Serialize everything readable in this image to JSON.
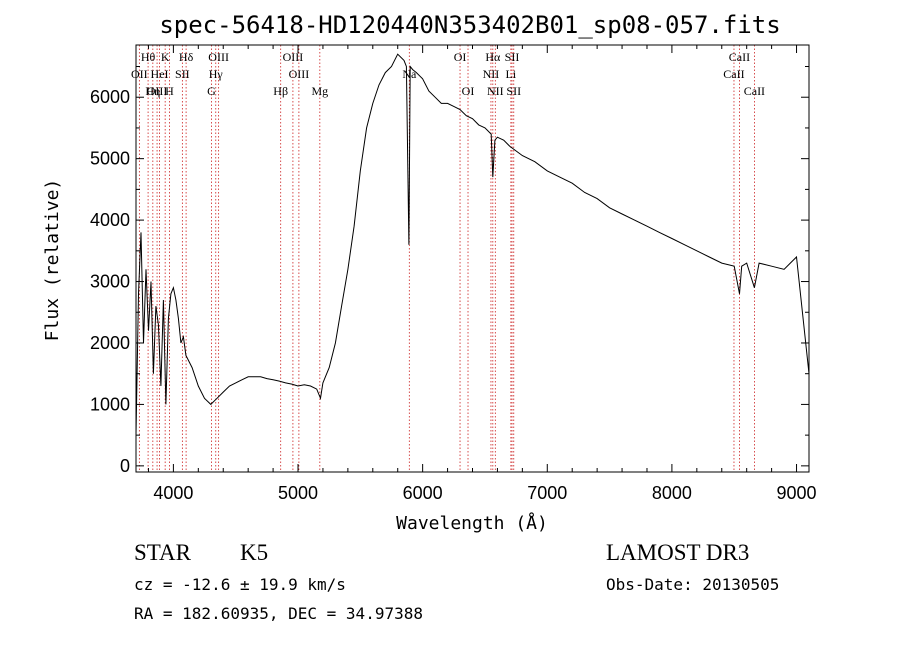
{
  "chart_data": {
    "type": "line",
    "title": "spec-56418-HD120440N353402B01_sp08-057.fits",
    "xlabel": "Wavelength (Å)",
    "ylabel": "Flux (relative)",
    "xlim": [
      3700,
      9100
    ],
    "ylim": [
      -100,
      6850
    ],
    "xticks": [
      4000,
      5000,
      6000,
      7000,
      8000,
      9000
    ],
    "yticks": [
      0,
      1000,
      2000,
      3000,
      4000,
      5000,
      6000
    ],
    "grid": false,
    "series": [
      {
        "name": "spectrum",
        "color": "#000000",
        "x": [
          3700,
          3720,
          3740,
          3760,
          3780,
          3800,
          3820,
          3840,
          3860,
          3880,
          3900,
          3920,
          3940,
          3960,
          3980,
          4000,
          4020,
          4040,
          4060,
          4080,
          4100,
          4150,
          4200,
          4250,
          4300,
          4350,
          4400,
          4450,
          4500,
          4550,
          4600,
          4650,
          4700,
          4750,
          4800,
          4850,
          4900,
          4950,
          5000,
          5050,
          5100,
          5150,
          5180,
          5200,
          5250,
          5300,
          5350,
          5400,
          5450,
          5500,
          5550,
          5600,
          5650,
          5700,
          5750,
          5800,
          5850,
          5870,
          5890,
          5900,
          5920,
          5950,
          6000,
          6050,
          6100,
          6150,
          6200,
          6250,
          6300,
          6350,
          6400,
          6450,
          6500,
          6550,
          6563,
          6580,
          6600,
          6650,
          6700,
          6800,
          6900,
          7000,
          7100,
          7200,
          7300,
          7400,
          7500,
          7600,
          7700,
          7800,
          7900,
          8000,
          8100,
          8200,
          8300,
          8400,
          8500,
          8542,
          8560,
          8600,
          8662,
          8700,
          8800,
          8900,
          8950,
          9000,
          9100
        ],
        "y": [
          500,
          2800,
          3800,
          2000,
          3200,
          2200,
          3000,
          1500,
          2600,
          2300,
          1300,
          2700,
          1000,
          2400,
          2800,
          2900,
          2700,
          2400,
          2000,
          2100,
          1800,
          1600,
          1300,
          1100,
          1000,
          1100,
          1200,
          1300,
          1350,
          1400,
          1450,
          1450,
          1450,
          1420,
          1400,
          1380,
          1350,
          1330,
          1300,
          1320,
          1300,
          1250,
          1100,
          1350,
          1600,
          2000,
          2600,
          3200,
          3900,
          4800,
          5500,
          5900,
          6200,
          6400,
          6500,
          6700,
          6600,
          6500,
          3600,
          6500,
          6450,
          6400,
          6300,
          6100,
          6000,
          5900,
          5900,
          5850,
          5800,
          5700,
          5650,
          5550,
          5500,
          5400,
          4700,
          5300,
          5350,
          5300,
          5200,
          5050,
          4950,
          4800,
          4700,
          4600,
          4450,
          4350,
          4200,
          4100,
          4000,
          3900,
          3800,
          3700,
          3600,
          3500,
          3400,
          3300,
          3250,
          2800,
          3250,
          3300,
          2900,
          3300,
          3250,
          3200,
          3300,
          3400,
          1500
        ]
      }
    ],
    "lines": [
      {
        "label": "Hθ",
        "wavelength": 3797,
        "row": 0
      },
      {
        "label": "OII",
        "wavelength": 3727,
        "row": 1
      },
      {
        "label": "OIII",
        "wavelength": 3869,
        "row": 2
      },
      {
        "label": "K",
        "wavelength": 3934,
        "row": 0
      },
      {
        "label": "HeI",
        "wavelength": 3889,
        "row": 1
      },
      {
        "label": "Hη",
        "wavelength": 3835,
        "row": 2
      },
      {
        "label": "SII",
        "wavelength": 4072,
        "row": 1
      },
      {
        "label": "H",
        "wavelength": 3968,
        "row": 2
      },
      {
        "label": "Hδ",
        "wavelength": 4102,
        "row": 0
      },
      {
        "label": "OIII",
        "wavelength": 4363,
        "row": 0
      },
      {
        "label": "Hγ",
        "wavelength": 4340,
        "row": 1
      },
      {
        "label": "G",
        "wavelength": 4305,
        "row": 2
      },
      {
        "label": "Hβ",
        "wavelength": 4861,
        "row": 2
      },
      {
        "label": "OIII",
        "wavelength": 4959,
        "row": 0
      },
      {
        "label": "OIII",
        "wavelength": 5007,
        "row": 1
      },
      {
        "label": "Mg",
        "wavelength": 5175,
        "row": 2
      },
      {
        "label": "Na",
        "wavelength": 5893,
        "row": 1
      },
      {
        "label": "OI",
        "wavelength": 6300,
        "row": 0
      },
      {
        "label": "OI",
        "wavelength": 6364,
        "row": 2
      },
      {
        "label": "Hα",
        "wavelength": 6563,
        "row": 0
      },
      {
        "label": "NII",
        "wavelength": 6548,
        "row": 1
      },
      {
        "label": "NII",
        "wavelength": 6583,
        "row": 2
      },
      {
        "label": "SII",
        "wavelength": 6717,
        "row": 0
      },
      {
        "label": "Li",
        "wavelength": 6708,
        "row": 1
      },
      {
        "label": "SII",
        "wavelength": 6731,
        "row": 2
      },
      {
        "label": "CaII",
        "wavelength": 8542,
        "row": 0
      },
      {
        "label": "CaII",
        "wavelength": 8498,
        "row": 1
      },
      {
        "label": "CaII",
        "wavelength": 8662,
        "row": 2
      }
    ]
  },
  "info": {
    "class": "STAR",
    "subclass": "K5",
    "survey": "LAMOST DR3",
    "cz": "cz = -12.6 ± 19.9 km/s",
    "obs_date": "Obs-Date: 20130505",
    "coords": "RA = 182.60935, DEC =  34.97388"
  },
  "colors": {
    "spectrum": "#000000",
    "line_marker": "#cc2222"
  }
}
